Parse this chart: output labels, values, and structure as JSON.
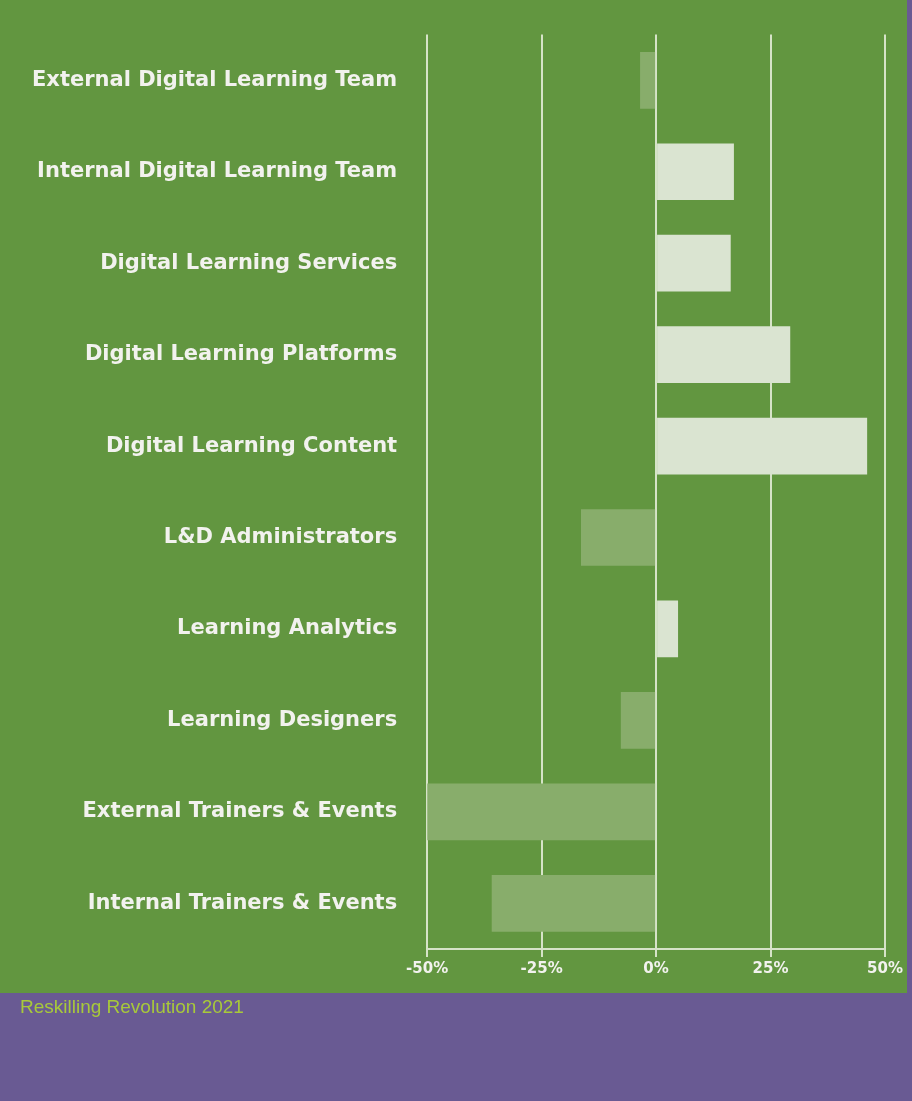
{
  "chart_data": {
    "type": "bar",
    "orientation": "horizontal",
    "categories": [
      "External Digital Learning Team",
      "Internal Digital Learning Team",
      "Digital Learning Services",
      "Digital Learning Platforms",
      "Digital Learning Content",
      "L&D Administrators",
      "Learning Analytics",
      "Learning Designers",
      "External Trainers & Events",
      "Internal Trainers & Events"
    ],
    "values": [
      -3.5,
      17,
      16.3,
      29.3,
      46.1,
      -16.4,
      4.8,
      -7.7,
      -50,
      -35.9
    ],
    "colors": [
      "#88ad6b",
      "#dae4d1",
      "#dae4d1",
      "#dae4d1",
      "#dae4d1",
      "#88ad6b",
      "#dae4d1",
      "#88ad6b",
      "#88ad6b",
      "#88ad6b"
    ],
    "xlim": [
      -50,
      50
    ],
    "xticks": [
      {
        "value": -50,
        "label": "-50%"
      },
      {
        "value": -25,
        "label": "-25%"
      },
      {
        "value": 0,
        "label": "0%"
      },
      {
        "value": 25,
        "label": "25%"
      },
      {
        "value": 50,
        "label": "50%"
      }
    ],
    "grid": "x",
    "legend": false,
    "annotations": [
      "Reskilling Revolution 2021"
    ]
  }
}
